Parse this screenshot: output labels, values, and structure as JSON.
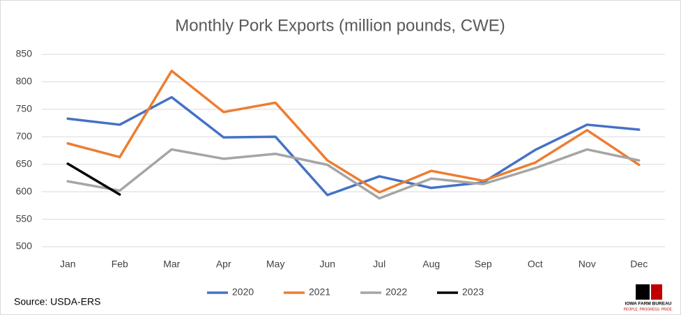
{
  "chart_data": {
    "type": "line",
    "title": "Monthly Pork Exports (million pounds, CWE)",
    "categories": [
      "Jan",
      "Feb",
      "Mar",
      "Apr",
      "May",
      "Jun",
      "Jul",
      "Aug",
      "Sep",
      "Oct",
      "Nov",
      "Dec"
    ],
    "series": [
      {
        "name": "2020",
        "color": "#4472c4",
        "values": [
          733,
          722,
          772,
          699,
          700,
          594,
          628,
          607,
          617,
          676,
          722,
          713
        ]
      },
      {
        "name": "2021",
        "color": "#ed7d31",
        "values": [
          688,
          663,
          820,
          745,
          762,
          657,
          599,
          638,
          620,
          653,
          712,
          649
        ]
      },
      {
        "name": "2022",
        "color": "#a5a5a5",
        "values": [
          619,
          602,
          677,
          660,
          669,
          649,
          588,
          624,
          614,
          643,
          677,
          657
        ]
      },
      {
        "name": "2023",
        "color": "#000000",
        "values": [
          651,
          595,
          null,
          null,
          null,
          null,
          null,
          null,
          null,
          null,
          null,
          null
        ]
      }
    ],
    "ylim": [
      500,
      850
    ],
    "yticks": [
      500,
      550,
      600,
      650,
      700,
      750,
      800,
      850
    ],
    "grid": true,
    "legend": "bottom",
    "source": "Source: USDA-ERS",
    "logo": {
      "name": "IOWA FARM BUREAU",
      "tagline": "PEOPLE. PROGRESS. PRIDE."
    }
  }
}
